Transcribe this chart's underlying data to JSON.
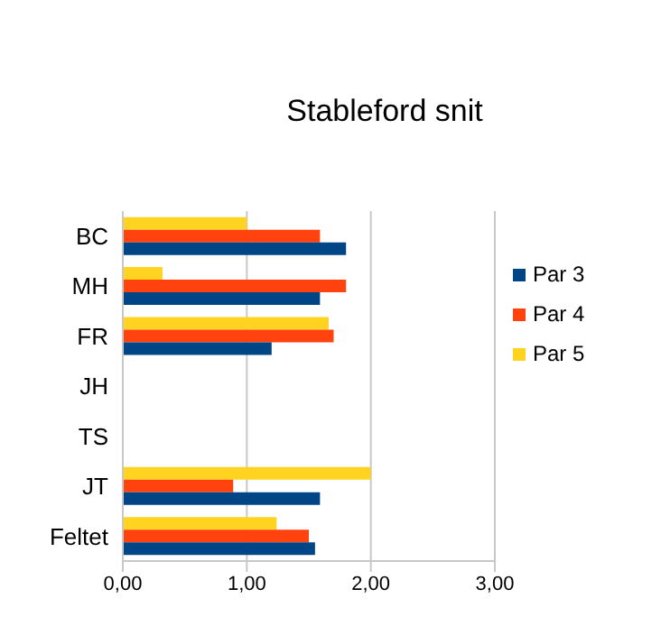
{
  "chart_data": {
    "type": "bar",
    "orientation": "horizontal",
    "title": "Stableford snit",
    "categories": [
      "BC",
      "MH",
      "FR",
      "JH",
      "TS",
      "JT",
      "Feltet"
    ],
    "series": [
      {
        "name": "Par 5",
        "color": "#ffd320",
        "values": [
          1.0,
          0.32,
          1.66,
          null,
          null,
          2.0,
          1.24
        ]
      },
      {
        "name": "Par 4",
        "color": "#ff420e",
        "values": [
          1.59,
          1.8,
          1.7,
          null,
          null,
          0.89,
          1.5
        ]
      },
      {
        "name": "Par 3",
        "color": "#004586",
        "values": [
          1.8,
          1.59,
          1.2,
          null,
          null,
          1.59,
          1.55
        ]
      }
    ],
    "xlim": [
      0,
      3
    ],
    "xticks": [
      {
        "value": 0,
        "label": "0,00"
      },
      {
        "value": 1,
        "label": "1,00"
      },
      {
        "value": 2,
        "label": "2,00"
      },
      {
        "value": 3,
        "label": "3,00"
      }
    ],
    "grid": "x",
    "legend": "right"
  }
}
